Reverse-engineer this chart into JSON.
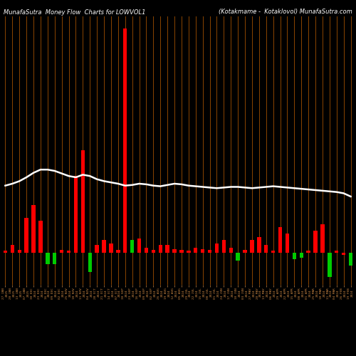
{
  "title_left": "MunafaSutra  Money Flow  Charts for LOWVOL1",
  "title_right": "(Kotakmame -  Kotaklovol) MunafaSutra.com",
  "background_color": "#000000",
  "line_color": "#ffffff",
  "stem_color": "#8B4500",
  "n_bars": 50,
  "categories": [
    "27 JAN\n2025\n \n ",
    "20 JAN\n2025\n \n ",
    "13 JAN\n2025\n \n ",
    "07 JAN\n2025\n \n ",
    "30 DEC\n2024\n \n ",
    "23 DEC\n2024\n \n ",
    "16 DEC\n2024\n \n ",
    "09 DEC\n2024\n \n ",
    "02 DEC\n2024\n \n ",
    "25 NOV\n2024\n \n ",
    "18 NOV\n2024\n \n ",
    "11 NOV\n2024\n \n ",
    "04 NOV\n2024\n \n ",
    "28 OCT\n2024\n \n ",
    "21 OCT\n2024\n \n ",
    "14 OCT\n2024\n \n ",
    "07 OCT\n2024\n \n ",
    "30 SEP\n2024\n \n ",
    "23 SEP\n2024\n \n ",
    "16 SEP\n2024\n \n ",
    "09 SEP\n2024\n \n ",
    "02 SEP\n2024\n \n ",
    "26 AUG\n2024\n \n ",
    "19 AUG\n2024\n \n ",
    "12 AUG\n2024\n \n ",
    "05 AUG\n2024\n \n ",
    "29 JUL\n2024\n \n ",
    "22 JUL\n2024\n \n ",
    "15 JUL\n2024\n \n ",
    "08 JUL\n2024\n \n ",
    "01 JUL\n2024\n \n ",
    "24 JUN\n2024\n \n ",
    "17 JUN\n2024\n \n ",
    "10 JUN\n2024\n \n ",
    "03 JUN\n2024\n \n ",
    "27 MAY\n2024\n \n ",
    "20 MAY\n2024\n \n ",
    "13 MAY\n2024\n \n ",
    "06 MAY\n2024\n \n ",
    "29 APR\n2024\n \n ",
    "22 APR\n2024\n \n ",
    "15 APR\n2024\n \n ",
    "08 APR\n2024\n \n ",
    "01 APR\n2024\n \n ",
    "25 MAR\n2024\n \n ",
    "18 MAR\n2024\n \n ",
    "11 MAR\n2024\n \n ",
    "04 MAR\n2024\n \n ",
    "26 FEB\n2024\n \n ",
    "19 FEB\n2024\n \n "
  ],
  "bar_heights": [
    3,
    12,
    5,
    55,
    75,
    50,
    -18,
    -18,
    4,
    3,
    120,
    160,
    -30,
    12,
    20,
    15,
    4,
    350,
    20,
    22,
    8,
    4,
    12,
    12,
    6,
    4,
    3,
    8,
    6,
    4,
    15,
    20,
    8,
    -12,
    4,
    20,
    25,
    12,
    3,
    40,
    30,
    -10,
    -8,
    3,
    35,
    45,
    -38,
    3,
    -3,
    -20
  ],
  "bar_colors": [
    "red",
    "red",
    "red",
    "red",
    "red",
    "red",
    "green",
    "green",
    "red",
    "red",
    "red",
    "red",
    "green",
    "red",
    "red",
    "red",
    "red",
    "red",
    "green",
    "red",
    "red",
    "red",
    "red",
    "red",
    "red",
    "red",
    "red",
    "red",
    "red",
    "red",
    "red",
    "red",
    "red",
    "green",
    "red",
    "red",
    "red",
    "red",
    "red",
    "red",
    "red",
    "green",
    "green",
    "red",
    "red",
    "red",
    "green",
    "red",
    "red",
    "green"
  ],
  "line_values": [
    105,
    108,
    112,
    118,
    125,
    130,
    130,
    128,
    124,
    120,
    118,
    122,
    120,
    115,
    112,
    110,
    108,
    105,
    106,
    108,
    107,
    105,
    104,
    106,
    108,
    107,
    105,
    104,
    103,
    102,
    101,
    102,
    103,
    103,
    102,
    101,
    102,
    103,
    104,
    103,
    102,
    101,
    100,
    99,
    98,
    97,
    96,
    95,
    93,
    88
  ],
  "ylim_max": 370,
  "ylim_min": -50
}
